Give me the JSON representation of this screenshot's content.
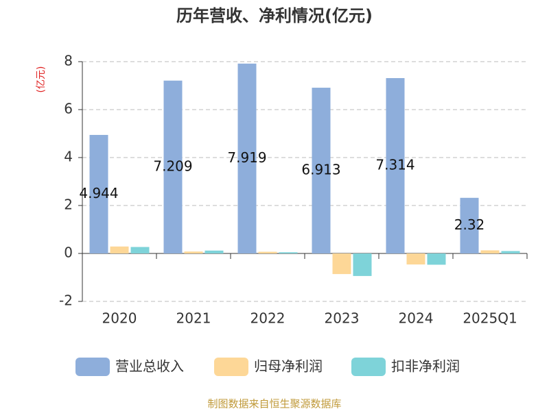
{
  "chart_data": {
    "type": "bar",
    "title": "历年营收、净利情况(亿元)",
    "y_label": "(亿元)",
    "categories": [
      "2020",
      "2021",
      "2022",
      "2023",
      "2024",
      "2025Q1"
    ],
    "series": [
      {
        "name": "营业总收入",
        "color": "#8eaedb",
        "values": [
          4.944,
          7.209,
          7.919,
          6.913,
          7.314,
          2.32
        ],
        "show_labels": true
      },
      {
        "name": "归母净利润",
        "color": "#fdd797",
        "values": [
          0.29,
          0.08,
          0.07,
          -0.86,
          -0.46,
          0.13
        ],
        "show_labels": false
      },
      {
        "name": "扣非净利润",
        "color": "#7ed3d9",
        "values": [
          0.27,
          0.12,
          0.05,
          -0.94,
          -0.47,
          0.1
        ],
        "show_labels": false
      }
    ],
    "ylim": [
      -2,
      8
    ],
    "yticks": [
      -2,
      0,
      2,
      4,
      6,
      8
    ],
    "grid": true,
    "source": "制图数据来自恒生聚源数据库"
  }
}
